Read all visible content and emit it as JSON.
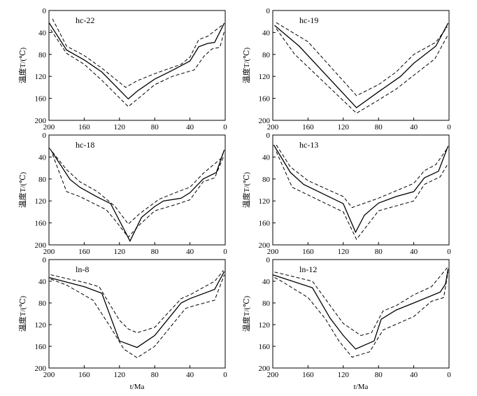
{
  "chart_data": [
    {
      "type": "line",
      "title": "hc-22",
      "ylabel": "温度T/(℃)",
      "xlabel": "",
      "xlim": [
        200,
        0
      ],
      "ylim": [
        0,
        200
      ],
      "y_inverted": true,
      "xticks": [
        200,
        160,
        120,
        80,
        40,
        0
      ],
      "yticks": [
        0,
        40,
        80,
        120,
        160,
        200
      ],
      "series": [
        {
          "style": "dashed",
          "points": [
            [
              196,
              15
            ],
            [
              180,
              65
            ],
            [
              160,
              82
            ],
            [
              140,
              105
            ],
            [
              113,
              140
            ],
            [
              100,
              128
            ],
            [
              80,
              115
            ],
            [
              50,
              98
            ],
            [
              40,
              85
            ],
            [
              30,
              53
            ],
            [
              20,
              47
            ],
            [
              2,
              25
            ]
          ]
        },
        {
          "style": "solid",
          "points": [
            [
              200,
              22
            ],
            [
              180,
              72
            ],
            [
              160,
              90
            ],
            [
              140,
              112
            ],
            [
              110,
              161
            ],
            [
              100,
              147
            ],
            [
              80,
              125
            ],
            [
              60,
              109
            ],
            [
              40,
              92
            ],
            [
              30,
              66
            ],
            [
              20,
              60
            ],
            [
              12,
              58
            ],
            [
              1,
              23
            ]
          ]
        },
        {
          "style": "dashed",
          "points": [
            [
              198,
              35
            ],
            [
              180,
              78
            ],
            [
              160,
              98
            ],
            [
              140,
              127
            ],
            [
              110,
              175
            ],
            [
              100,
              162
            ],
            [
              80,
              135
            ],
            [
              60,
              120
            ],
            [
              35,
              108
            ],
            [
              24,
              83
            ],
            [
              15,
              70
            ],
            [
              6,
              67
            ],
            [
              1,
              38
            ]
          ]
        }
      ]
    },
    {
      "type": "line",
      "title": "hc-19",
      "ylabel": "温度T/(℃)",
      "xlabel": "",
      "xlim": [
        200,
        0
      ],
      "ylim": [
        0,
        200
      ],
      "y_inverted": true,
      "xticks": [
        200,
        160,
        120,
        80,
        40,
        0
      ],
      "yticks": [
        0,
        40,
        80,
        120,
        160,
        200
      ],
      "series": [
        {
          "style": "dashed",
          "points": [
            [
              196,
              22
            ],
            [
              160,
              57
            ],
            [
              105,
              155
            ],
            [
              80,
              135
            ],
            [
              60,
              112
            ],
            [
              40,
              80
            ],
            [
              15,
              58
            ],
            [
              2,
              30
            ]
          ]
        },
        {
          "style": "solid",
          "points": [
            [
              198,
              27
            ],
            [
              170,
              65
            ],
            [
              105,
              177
            ],
            [
              80,
              148
            ],
            [
              55,
              120
            ],
            [
              40,
              96
            ],
            [
              15,
              65
            ],
            [
              1,
              23
            ]
          ]
        },
        {
          "style": "dashed",
          "points": [
            [
              196,
              33
            ],
            [
              175,
              80
            ],
            [
              105,
              187
            ],
            [
              80,
              163
            ],
            [
              60,
              143
            ],
            [
              40,
              118
            ],
            [
              16,
              88
            ],
            [
              1,
              44
            ]
          ]
        }
      ]
    },
    {
      "type": "line",
      "title": "hc-18",
      "ylabel": "温度T/(℃)",
      "xlabel": "",
      "xlim": [
        200,
        0
      ],
      "ylim": [
        0,
        200
      ],
      "y_inverted": true,
      "xticks": [
        200,
        160,
        120,
        80,
        40,
        0
      ],
      "yticks": [
        0,
        40,
        80,
        120,
        160,
        200
      ],
      "series": [
        {
          "style": "dashed",
          "points": [
            [
              200,
              23
            ],
            [
              180,
              63
            ],
            [
              165,
              85
            ],
            [
              145,
              103
            ],
            [
              125,
              130
            ],
            [
              110,
              162
            ],
            [
              97,
              143
            ],
            [
              75,
              117
            ],
            [
              55,
              104
            ],
            [
              40,
              95
            ],
            [
              25,
              70
            ],
            [
              5,
              43
            ],
            [
              1,
              28
            ]
          ]
        },
        {
          "style": "solid",
          "points": [
            [
              198,
              27
            ],
            [
              176,
              81
            ],
            [
              165,
              95
            ],
            [
              145,
              113
            ],
            [
              130,
              125
            ],
            [
              108,
              193
            ],
            [
              95,
              150
            ],
            [
              80,
              130
            ],
            [
              70,
              120
            ],
            [
              50,
              115
            ],
            [
              40,
              105
            ],
            [
              25,
              80
            ],
            [
              10,
              68
            ],
            [
              1,
              27
            ]
          ]
        },
        {
          "style": "dashed",
          "points": [
            [
              196,
              35
            ],
            [
              180,
              103
            ],
            [
              165,
              112
            ],
            [
              135,
              136
            ],
            [
              125,
              155
            ],
            [
              110,
              186
            ],
            [
              97,
              163
            ],
            [
              80,
              138
            ],
            [
              55,
              126
            ],
            [
              40,
              118
            ],
            [
              25,
              85
            ],
            [
              12,
              78
            ],
            [
              2,
              40
            ]
          ]
        }
      ]
    },
    {
      "type": "line",
      "title": "hc-13",
      "ylabel": "温度T/(℃)",
      "xlabel": "",
      "xlim": [
        200,
        0
      ],
      "ylim": [
        0,
        200
      ],
      "y_inverted": true,
      "xticks": [
        200,
        160,
        120,
        80,
        40,
        0
      ],
      "yticks": [
        0,
        40,
        80,
        120,
        160,
        200
      ],
      "series": [
        {
          "style": "dashed",
          "points": [
            [
              196,
              18
            ],
            [
              180,
              58
            ],
            [
              160,
              83
            ],
            [
              120,
              112
            ],
            [
              110,
              132
            ],
            [
              80,
              115
            ],
            [
              40,
              88
            ],
            [
              28,
              65
            ],
            [
              15,
              54
            ],
            [
              1,
              22
            ]
          ]
        },
        {
          "style": "solid",
          "points": [
            [
              199,
              18
            ],
            [
              180,
              68
            ],
            [
              165,
              90
            ],
            [
              120,
              125
            ],
            [
              106,
              177
            ],
            [
              96,
              146
            ],
            [
              80,
              124
            ],
            [
              60,
              112
            ],
            [
              40,
              103
            ],
            [
              28,
              78
            ],
            [
              12,
              66
            ],
            [
              1,
              20
            ]
          ]
        },
        {
          "style": "dashed",
          "points": [
            [
              196,
              30
            ],
            [
              178,
              95
            ],
            [
              155,
              113
            ],
            [
              120,
              140
            ],
            [
              105,
              190
            ],
            [
              80,
              138
            ],
            [
              60,
              129
            ],
            [
              40,
              120
            ],
            [
              28,
              90
            ],
            [
              10,
              76
            ],
            [
              2,
              54
            ]
          ]
        }
      ]
    },
    {
      "type": "line",
      "title": "ln-8",
      "ylabel": "温度T/(℃)",
      "xlabel": "t/Ma",
      "xlim": [
        200,
        0
      ],
      "ylim": [
        0,
        200
      ],
      "y_inverted": true,
      "xticks": [
        200,
        160,
        120,
        80,
        40,
        0
      ],
      "yticks": [
        0,
        40,
        80,
        120,
        160,
        200
      ],
      "series": [
        {
          "style": "dashed",
          "points": [
            [
              198,
              28
            ],
            [
              180,
              35
            ],
            [
              160,
              42
            ],
            [
              143,
              50
            ],
            [
              120,
              112
            ],
            [
              110,
              128
            ],
            [
              100,
              135
            ],
            [
              80,
              125
            ],
            [
              50,
              72
            ],
            [
              40,
              65
            ],
            [
              12,
              40
            ],
            [
              2,
              20
            ]
          ]
        },
        {
          "style": "solid",
          "points": [
            [
              200,
              33
            ],
            [
              160,
              50
            ],
            [
              140,
              62
            ],
            [
              120,
              150
            ],
            [
              100,
              162
            ],
            [
              80,
              140
            ],
            [
              50,
              80
            ],
            [
              40,
              72
            ],
            [
              12,
              55
            ],
            [
              1,
              22
            ]
          ]
        },
        {
          "style": "dashed",
          "points": [
            [
              198,
              36
            ],
            [
              180,
              47
            ],
            [
              150,
              75
            ],
            [
              130,
              125
            ],
            [
              115,
              165
            ],
            [
              100,
              181
            ],
            [
              80,
              160
            ],
            [
              60,
              120
            ],
            [
              45,
              90
            ],
            [
              35,
              85
            ],
            [
              12,
              75
            ],
            [
              1,
              28
            ]
          ]
        }
      ]
    },
    {
      "type": "line",
      "title": "ln-12",
      "ylabel": "温度T/(℃)",
      "xlabel": "t/Ma",
      "xlim": [
        200,
        0
      ],
      "ylim": [
        0,
        200
      ],
      "y_inverted": true,
      "xticks": [
        200,
        160,
        120,
        80,
        40,
        0
      ],
      "yticks": [
        0,
        40,
        80,
        120,
        160,
        200
      ],
      "series": [
        {
          "style": "dashed",
          "points": [
            [
              198,
              23
            ],
            [
              180,
              30
            ],
            [
              155,
              40
            ],
            [
              120,
              118
            ],
            [
              100,
              140
            ],
            [
              88,
              135
            ],
            [
              75,
              95
            ],
            [
              60,
              85
            ],
            [
              40,
              65
            ],
            [
              20,
              50
            ],
            [
              2,
              15
            ]
          ]
        },
        {
          "style": "solid",
          "points": [
            [
              200,
              28
            ],
            [
              155,
              52
            ],
            [
              135,
              108
            ],
            [
              120,
              140
            ],
            [
              106,
              165
            ],
            [
              85,
              150
            ],
            [
              77,
              110
            ],
            [
              60,
              93
            ],
            [
              40,
              80
            ],
            [
              10,
              60
            ],
            [
              4,
              45
            ],
            [
              1,
              17
            ]
          ]
        },
        {
          "style": "dashed",
          "points": [
            [
              198,
              33
            ],
            [
              190,
              40
            ],
            [
              160,
              70
            ],
            [
              140,
              110
            ],
            [
              125,
              150
            ],
            [
              110,
              180
            ],
            [
              90,
              170
            ],
            [
              75,
              130
            ],
            [
              40,
              105
            ],
            [
              20,
              77
            ],
            [
              6,
              70
            ],
            [
              1,
              22
            ]
          ]
        }
      ]
    }
  ]
}
